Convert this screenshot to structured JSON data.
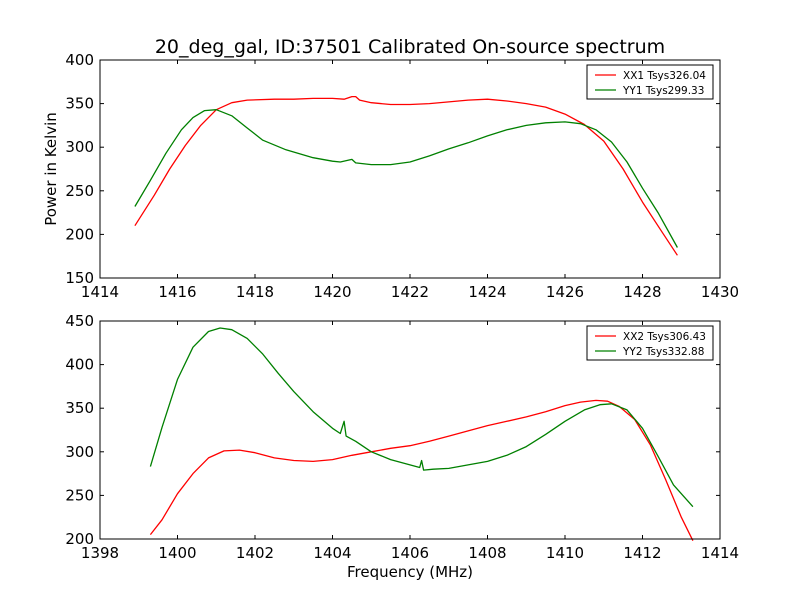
{
  "figure": {
    "title": "20_deg_gal, ID:37501 Calibrated On-source spectrum"
  },
  "chart_data": [
    {
      "type": "line",
      "title": "20_deg_gal, ID:37501 Calibrated On-source spectrum",
      "xlabel": "",
      "ylabel": "Power in Kelvin",
      "xlim": [
        1414,
        1430
      ],
      "ylim": [
        150,
        400
      ],
      "xticks": [
        1414,
        1416,
        1418,
        1420,
        1422,
        1424,
        1426,
        1428,
        1430
      ],
      "yticks": [
        150,
        200,
        250,
        300,
        350,
        400
      ],
      "legend": "top-right",
      "series": [
        {
          "name": "XX1 Tsys326.04",
          "color": "#ff0000",
          "points": [
            [
              1414.9,
              210
            ],
            [
              1415.4,
              245
            ],
            [
              1415.8,
              275
            ],
            [
              1416.2,
              302
            ],
            [
              1416.6,
              325
            ],
            [
              1417.0,
              343
            ],
            [
              1417.4,
              351
            ],
            [
              1417.8,
              354
            ],
            [
              1418.5,
              355
            ],
            [
              1419.0,
              355
            ],
            [
              1419.5,
              356
            ],
            [
              1420.0,
              356
            ],
            [
              1420.3,
              355
            ],
            [
              1420.5,
              358
            ],
            [
              1420.6,
              358
            ],
            [
              1420.7,
              354
            ],
            [
              1421.0,
              351
            ],
            [
              1421.5,
              349
            ],
            [
              1422.0,
              349
            ],
            [
              1422.5,
              350
            ],
            [
              1423.0,
              352
            ],
            [
              1423.5,
              354
            ],
            [
              1424.0,
              355
            ],
            [
              1424.5,
              353
            ],
            [
              1425.0,
              350
            ],
            [
              1425.5,
              346
            ],
            [
              1426.0,
              338
            ],
            [
              1426.5,
              326
            ],
            [
              1427.0,
              307
            ],
            [
              1427.5,
              275
            ],
            [
              1428.0,
              237
            ],
            [
              1428.5,
              203
            ],
            [
              1428.9,
              176
            ]
          ]
        },
        {
          "name": "YY1 Tsys299.33",
          "color": "#008000",
          "points": [
            [
              1414.9,
              232
            ],
            [
              1415.3,
              262
            ],
            [
              1415.7,
              293
            ],
            [
              1416.1,
              320
            ],
            [
              1416.4,
              334
            ],
            [
              1416.7,
              342
            ],
            [
              1417.0,
              343
            ],
            [
              1417.4,
              336
            ],
            [
              1417.8,
              322
            ],
            [
              1418.2,
              308
            ],
            [
              1418.8,
              297
            ],
            [
              1419.5,
              288
            ],
            [
              1420.0,
              284
            ],
            [
              1420.2,
              283
            ],
            [
              1420.4,
              285
            ],
            [
              1420.5,
              286
            ],
            [
              1420.6,
              282
            ],
            [
              1421.0,
              280
            ],
            [
              1421.5,
              280
            ],
            [
              1422.0,
              283
            ],
            [
              1422.5,
              290
            ],
            [
              1423.0,
              298
            ],
            [
              1423.5,
              305
            ],
            [
              1424.0,
              313
            ],
            [
              1424.5,
              320
            ],
            [
              1425.0,
              325
            ],
            [
              1425.5,
              328
            ],
            [
              1426.0,
              329
            ],
            [
              1426.4,
              327
            ],
            [
              1426.8,
              320
            ],
            [
              1427.2,
              306
            ],
            [
              1427.6,
              283
            ],
            [
              1428.0,
              253
            ],
            [
              1428.4,
              225
            ],
            [
              1428.9,
              185
            ]
          ]
        }
      ]
    },
    {
      "type": "line",
      "title": "",
      "xlabel": "Frequency (MHz)",
      "ylabel": "",
      "xlim": [
        1398,
        1414
      ],
      "ylim": [
        200,
        450
      ],
      "xticks": [
        1398,
        1400,
        1402,
        1404,
        1406,
        1408,
        1410,
        1412,
        1414
      ],
      "yticks": [
        200,
        250,
        300,
        350,
        400,
        450
      ],
      "legend": "top-right",
      "series": [
        {
          "name": "XX2 Tsys306.43",
          "color": "#ff0000",
          "points": [
            [
              1399.3,
              205
            ],
            [
              1399.6,
              222
            ],
            [
              1400.0,
              252
            ],
            [
              1400.4,
              275
            ],
            [
              1400.8,
              293
            ],
            [
              1401.2,
              301
            ],
            [
              1401.6,
              302
            ],
            [
              1402.0,
              299
            ],
            [
              1402.5,
              293
            ],
            [
              1403.0,
              290
            ],
            [
              1403.5,
              289
            ],
            [
              1404.0,
              291
            ],
            [
              1404.5,
              296
            ],
            [
              1405.0,
              300
            ],
            [
              1405.5,
              304
            ],
            [
              1406.0,
              307
            ],
            [
              1406.5,
              312
            ],
            [
              1407.0,
              318
            ],
            [
              1407.5,
              324
            ],
            [
              1408.0,
              330
            ],
            [
              1408.5,
              335
            ],
            [
              1409.0,
              340
            ],
            [
              1409.5,
              346
            ],
            [
              1410.0,
              353
            ],
            [
              1410.4,
              357
            ],
            [
              1410.8,
              359
            ],
            [
              1411.1,
              358
            ],
            [
              1411.4,
              352
            ],
            [
              1411.8,
              337
            ],
            [
              1412.2,
              308
            ],
            [
              1412.6,
              268
            ],
            [
              1413.0,
              225
            ],
            [
              1413.3,
              198
            ]
          ]
        },
        {
          "name": "YY2 Tsys332.88",
          "color": "#008000",
          "points": [
            [
              1399.3,
              283
            ],
            [
              1399.6,
              328
            ],
            [
              1400.0,
              383
            ],
            [
              1400.4,
              420
            ],
            [
              1400.8,
              438
            ],
            [
              1401.1,
              442
            ],
            [
              1401.4,
              440
            ],
            [
              1401.8,
              430
            ],
            [
              1402.2,
              412
            ],
            [
              1402.6,
              390
            ],
            [
              1403.0,
              369
            ],
            [
              1403.5,
              346
            ],
            [
              1404.0,
              327
            ],
            [
              1404.2,
              321
            ],
            [
              1404.3,
              335
            ],
            [
              1404.35,
              318
            ],
            [
              1404.6,
              312
            ],
            [
              1405.0,
              300
            ],
            [
              1405.5,
              291
            ],
            [
              1406.0,
              285
            ],
            [
              1406.25,
              282
            ],
            [
              1406.3,
              290
            ],
            [
              1406.35,
              279
            ],
            [
              1406.6,
              280
            ],
            [
              1407.0,
              281
            ],
            [
              1407.5,
              285
            ],
            [
              1408.0,
              289
            ],
            [
              1408.5,
              296
            ],
            [
              1409.0,
              306
            ],
            [
              1409.5,
              320
            ],
            [
              1410.0,
              335
            ],
            [
              1410.5,
              348
            ],
            [
              1410.9,
              354
            ],
            [
              1411.2,
              355
            ],
            [
              1411.6,
              348
            ],
            [
              1412.0,
              327
            ],
            [
              1412.4,
              295
            ],
            [
              1412.8,
              262
            ],
            [
              1413.3,
              237
            ]
          ]
        }
      ]
    }
  ]
}
